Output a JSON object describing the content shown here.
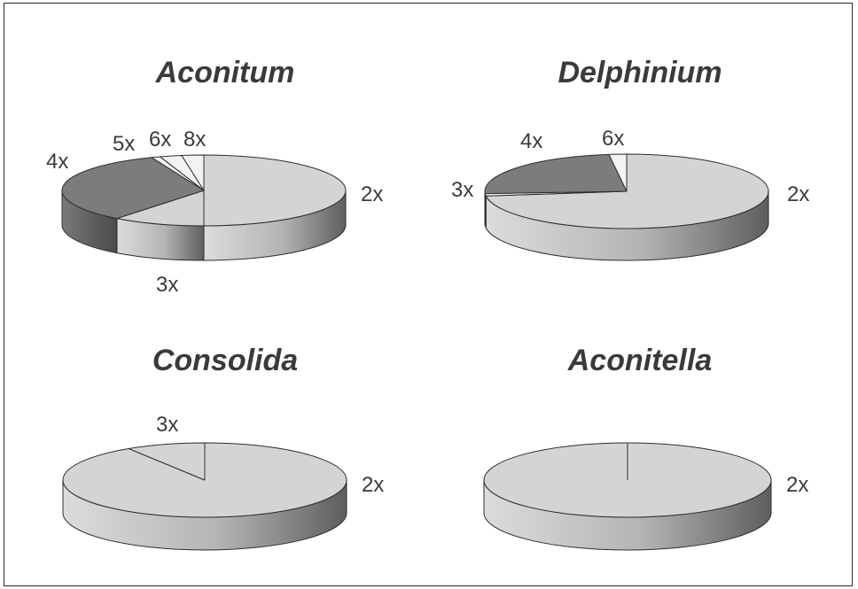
{
  "chart_data": [
    {
      "type": "pie",
      "title": "Aconitum",
      "slices": [
        {
          "label": "2x",
          "value": 50.0
        },
        {
          "label": "3x",
          "value": 10.5
        },
        {
          "label": "4x",
          "value": 33.5
        },
        {
          "label": "5x",
          "value": 1.0
        },
        {
          "label": "6x",
          "value": 2.5
        },
        {
          "label": "8x",
          "value": 2.5
        }
      ]
    },
    {
      "type": "pie",
      "title": "Delphinium",
      "slices": [
        {
          "label": "2x",
          "value": 73.0
        },
        {
          "label": "3x",
          "value": 1.0
        },
        {
          "label": "4x",
          "value": 24.0
        },
        {
          "label": "6x",
          "value": 2.0
        }
      ]
    },
    {
      "type": "pie",
      "title": "Consolida",
      "slices": [
        {
          "label": "2x",
          "value": 91.0
        },
        {
          "label": "3x",
          "value": 9.0
        }
      ]
    },
    {
      "type": "pie",
      "title": "Aconitella",
      "slices": [
        {
          "label": "2x",
          "value": 100.0
        }
      ]
    }
  ],
  "colors": {
    "top_light": "#d4d4d4",
    "top_dark": "#7c7c7c",
    "top_white": "#f3f3f3",
    "outline": "#2e2e2e",
    "text": "#3a3a3a"
  }
}
